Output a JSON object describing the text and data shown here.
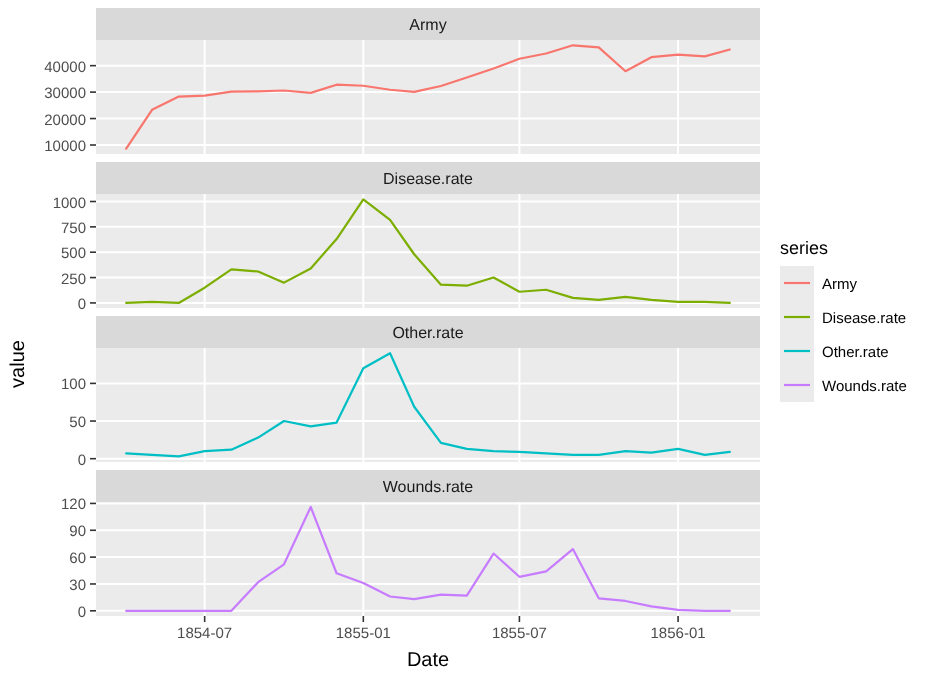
{
  "chart_data": [
    {
      "type": "line",
      "title": "Army",
      "legend": "right",
      "legend_title": "series",
      "grid": true,
      "tick_labels": "y",
      "x": [
        "1854-04",
        "1854-05",
        "1854-06",
        "1854-07",
        "1854-08",
        "1854-09",
        "1854-10",
        "1854-11",
        "1854-12",
        "1855-01",
        "1855-02",
        "1855-03",
        "1855-04",
        "1855-05",
        "1855-06",
        "1855-07",
        "1855-08",
        "1855-09",
        "1855-10",
        "1855-11",
        "1855-12",
        "1856-01",
        "1856-02",
        "1856-03"
      ],
      "xlim": [
        "1854-02-25",
        "1856-04-05"
      ],
      "ylim": [
        6600,
        49700
      ],
      "yticks": [
        10000,
        20000,
        30000,
        40000
      ],
      "series": [
        {
          "name": "Army",
          "color": "#f8766d",
          "values": [
            8600,
            23300,
            28300,
            28700,
            30200,
            30300,
            30600,
            29700,
            32800,
            32400,
            30900,
            30100,
            32300,
            35500,
            38900,
            42600,
            44600,
            47700,
            46900,
            37900,
            43200,
            44200,
            43500,
            46100
          ]
        }
      ]
    },
    {
      "type": "line",
      "title": "Disease.rate",
      "legend": "right",
      "grid": true,
      "tick_labels": "y",
      "x": [
        "1854-04",
        "1854-05",
        "1854-06",
        "1854-07",
        "1854-08",
        "1854-09",
        "1854-10",
        "1854-11",
        "1854-12",
        "1855-01",
        "1855-02",
        "1855-03",
        "1855-04",
        "1855-05",
        "1855-06",
        "1855-07",
        "1855-08",
        "1855-09",
        "1855-10",
        "1855-11",
        "1855-12",
        "1856-01",
        "1856-02",
        "1856-03"
      ],
      "xlim": [
        "1854-02-25",
        "1856-04-05"
      ],
      "ylim": [
        -50,
        1074
      ],
      "yticks": [
        0,
        250,
        500,
        750,
        1000
      ],
      "series": [
        {
          "name": "Disease.rate",
          "color": "#7cae00",
          "values": [
            0,
            10,
            0,
            150,
            330,
            310,
            200,
            340,
            630,
            1020,
            820,
            480,
            180,
            170,
            250,
            110,
            130,
            50,
            30,
            60,
            30,
            10,
            10,
            0
          ]
        }
      ]
    },
    {
      "type": "line",
      "title": "Other.rate",
      "ylabel": "value",
      "legend": "right",
      "grid": true,
      "tick_labels": "y",
      "x": [
        "1854-04",
        "1854-05",
        "1854-06",
        "1854-07",
        "1854-08",
        "1854-09",
        "1854-10",
        "1854-11",
        "1854-12",
        "1855-01",
        "1855-02",
        "1855-03",
        "1855-04",
        "1855-05",
        "1855-06",
        "1855-07",
        "1855-08",
        "1855-09",
        "1855-10",
        "1855-11",
        "1855-12",
        "1856-01",
        "1856-02",
        "1856-03"
      ],
      "xlim": [
        "1854-02-25",
        "1856-04-05"
      ],
      "ylim": [
        -4.4,
        147
      ],
      "yticks": [
        0,
        50,
        100
      ],
      "series": [
        {
          "name": "Other.rate",
          "color": "#00bfc4",
          "values": [
            7,
            5,
            3,
            10,
            12,
            28,
            50,
            43,
            48,
            120,
            140,
            69,
            21,
            13,
            10,
            9,
            7,
            5,
            5,
            10,
            8,
            13,
            5,
            9
          ]
        }
      ]
    },
    {
      "type": "line",
      "title": "Wounds.rate",
      "xlabel": "Date",
      "legend": "right",
      "grid": true,
      "x": [
        "1854-04",
        "1854-05",
        "1854-06",
        "1854-07",
        "1854-08",
        "1854-09",
        "1854-10",
        "1854-11",
        "1854-12",
        "1855-01",
        "1855-02",
        "1855-03",
        "1855-04",
        "1855-05",
        "1855-06",
        "1855-07",
        "1855-08",
        "1855-09",
        "1855-10",
        "1855-11",
        "1855-12",
        "1856-01",
        "1856-02",
        "1856-03"
      ],
      "xlim": [
        "1854-02-25",
        "1856-04-05"
      ],
      "xticks": [
        {
          "value": "1854-07-01",
          "label": "1854-07"
        },
        {
          "value": "1855-01-01",
          "label": "1855-01"
        },
        {
          "value": "1855-07-01",
          "label": "1855-07"
        },
        {
          "value": "1856-01-01",
          "label": "1856-01"
        }
      ],
      "ylim": [
        -5.8,
        121.6
      ],
      "yticks": [
        0,
        30,
        60,
        90,
        120
      ],
      "series": [
        {
          "name": "Wounds.rate",
          "color": "#c77cff",
          "values": [
            0,
            0,
            0,
            0,
            0,
            32,
            52,
            116,
            42,
            31,
            16,
            13,
            18,
            17,
            64,
            38,
            44,
            69,
            14,
            11,
            5,
            1,
            0,
            0
          ]
        }
      ]
    }
  ]
}
